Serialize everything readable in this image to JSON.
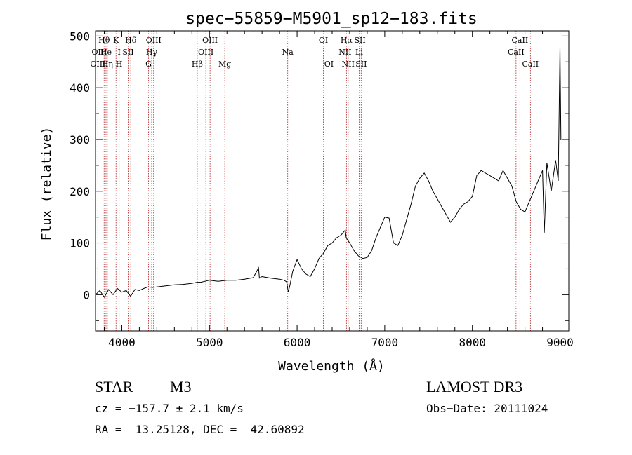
{
  "chart_data": {
    "type": "line",
    "title": "spec−55859−M5901_sp12−183.fits",
    "xlabel": "Wavelength (Å)",
    "ylabel": "Flux (relative)",
    "xlim": [
      3700,
      9100
    ],
    "ylim": [
      -70,
      510
    ],
    "x_ticks": [
      4000,
      5000,
      6000,
      7000,
      8000,
      9000
    ],
    "y_ticks": [
      0,
      100,
      200,
      300,
      400,
      500
    ],
    "grid": false,
    "line_color": "#000000",
    "marker_color": "#b22222",
    "series": [
      {
        "name": "spectrum",
        "x": [
          3700,
          3750,
          3800,
          3850,
          3900,
          3950,
          4000,
          4050,
          4100,
          4150,
          4200,
          4250,
          4300,
          4350,
          4400,
          4500,
          4600,
          4700,
          4800,
          4860,
          4900,
          5000,
          5100,
          5200,
          5300,
          5400,
          5500,
          5560,
          5570,
          5600,
          5700,
          5800,
          5850,
          5880,
          5900,
          5920,
          5950,
          6000,
          6050,
          6100,
          6150,
          6200,
          6250,
          6300,
          6350,
          6400,
          6450,
          6500,
          6550,
          6560,
          6600,
          6650,
          6700,
          6750,
          6800,
          6850,
          6900,
          6950,
          7000,
          7050,
          7100,
          7150,
          7200,
          7250,
          7300,
          7350,
          7400,
          7450,
          7500,
          7550,
          7600,
          7650,
          7700,
          7750,
          7800,
          7850,
          7900,
          7950,
          8000,
          8050,
          8100,
          8150,
          8200,
          8250,
          8300,
          8350,
          8400,
          8450,
          8500,
          8550,
          8600,
          8650,
          8700,
          8750,
          8800,
          8820,
          8850,
          8900,
          8950,
          8980,
          9000,
          9010
        ],
        "y": [
          0,
          8,
          -5,
          10,
          0,
          12,
          5,
          8,
          -3,
          10,
          8,
          12,
          15,
          14,
          15,
          17,
          19,
          20,
          22,
          24,
          24,
          28,
          26,
          28,
          28,
          30,
          33,
          52,
          32,
          35,
          32,
          30,
          28,
          25,
          5,
          20,
          45,
          68,
          50,
          40,
          35,
          50,
          70,
          80,
          95,
          100,
          110,
          115,
          125,
          110,
          100,
          85,
          75,
          70,
          72,
          85,
          110,
          130,
          150,
          148,
          100,
          95,
          115,
          145,
          175,
          210,
          225,
          235,
          220,
          200,
          185,
          170,
          155,
          140,
          150,
          165,
          175,
          180,
          190,
          230,
          240,
          235,
          230,
          225,
          220,
          240,
          225,
          210,
          180,
          165,
          160,
          180,
          200,
          220,
          240,
          120,
          255,
          200,
          260,
          220,
          480,
          300
        ]
      }
    ],
    "line_markers": [
      {
        "label": "Hθ",
        "wavelength": 3798,
        "row": 0
      },
      {
        "label": "OII",
        "wavelength": 3727,
        "row": 1
      },
      {
        "label": "OIII",
        "wavelength": 3727,
        "row": 2
      },
      {
        "label": "He",
        "wavelength": 3820,
        "row": 1
      },
      {
        "label": "Hη",
        "wavelength": 3835,
        "row": 2
      },
      {
        "label": "K",
        "wavelength": 3934,
        "row": 0
      },
      {
        "label": "I",
        "wavelength": 3970,
        "row": 1
      },
      {
        "label": "H",
        "wavelength": 3969,
        "row": 2
      },
      {
        "label": "Hδ",
        "wavelength": 4102,
        "row": 0
      },
      {
        "label": "SII",
        "wavelength": 4072,
        "row": 1
      },
      {
        "label": "OIII",
        "wavelength": 4363,
        "row": 0
      },
      {
        "label": "Hγ",
        "wavelength": 4341,
        "row": 1
      },
      {
        "label": "G",
        "wavelength": 4305,
        "row": 2
      },
      {
        "label": "OIII",
        "wavelength": 5007,
        "row": 0
      },
      {
        "label": "OIII",
        "wavelength": 4959,
        "row": 1
      },
      {
        "label": "Hβ",
        "wavelength": 4861,
        "row": 2
      },
      {
        "label": "Mg",
        "wavelength": 5175,
        "row": 2
      },
      {
        "label": "Na",
        "wavelength": 5893,
        "row": 1
      },
      {
        "label": "OI",
        "wavelength": 6300,
        "row": 0
      },
      {
        "label": "OI",
        "wavelength": 6363,
        "row": 2
      },
      {
        "label": "Hα",
        "wavelength": 6563,
        "row": 0
      },
      {
        "label": "NII",
        "wavelength": 6548,
        "row": 1
      },
      {
        "label": "NII",
        "wavelength": 6583,
        "row": 2
      },
      {
        "label": "SII",
        "wavelength": 6717,
        "row": 0
      },
      {
        "label": "Li",
        "wavelength": 6708,
        "row": 1
      },
      {
        "label": "SII",
        "wavelength": 6731,
        "row": 2
      },
      {
        "label": "CaII",
        "wavelength": 8542,
        "row": 0
      },
      {
        "label": "CaII",
        "wavelength": 8498,
        "row": 1
      },
      {
        "label": "CaII",
        "wavelength": 8662,
        "row": 2
      }
    ]
  },
  "info": {
    "object_class": "STAR",
    "subclass": "M3",
    "survey": "LAMOST DR3",
    "cz": "cz = −157.7 ± 2.1 km/s",
    "obs_date": "Obs−Date: 20111024",
    "coords": "RA =  13.25128, DEC =  42.60892"
  }
}
